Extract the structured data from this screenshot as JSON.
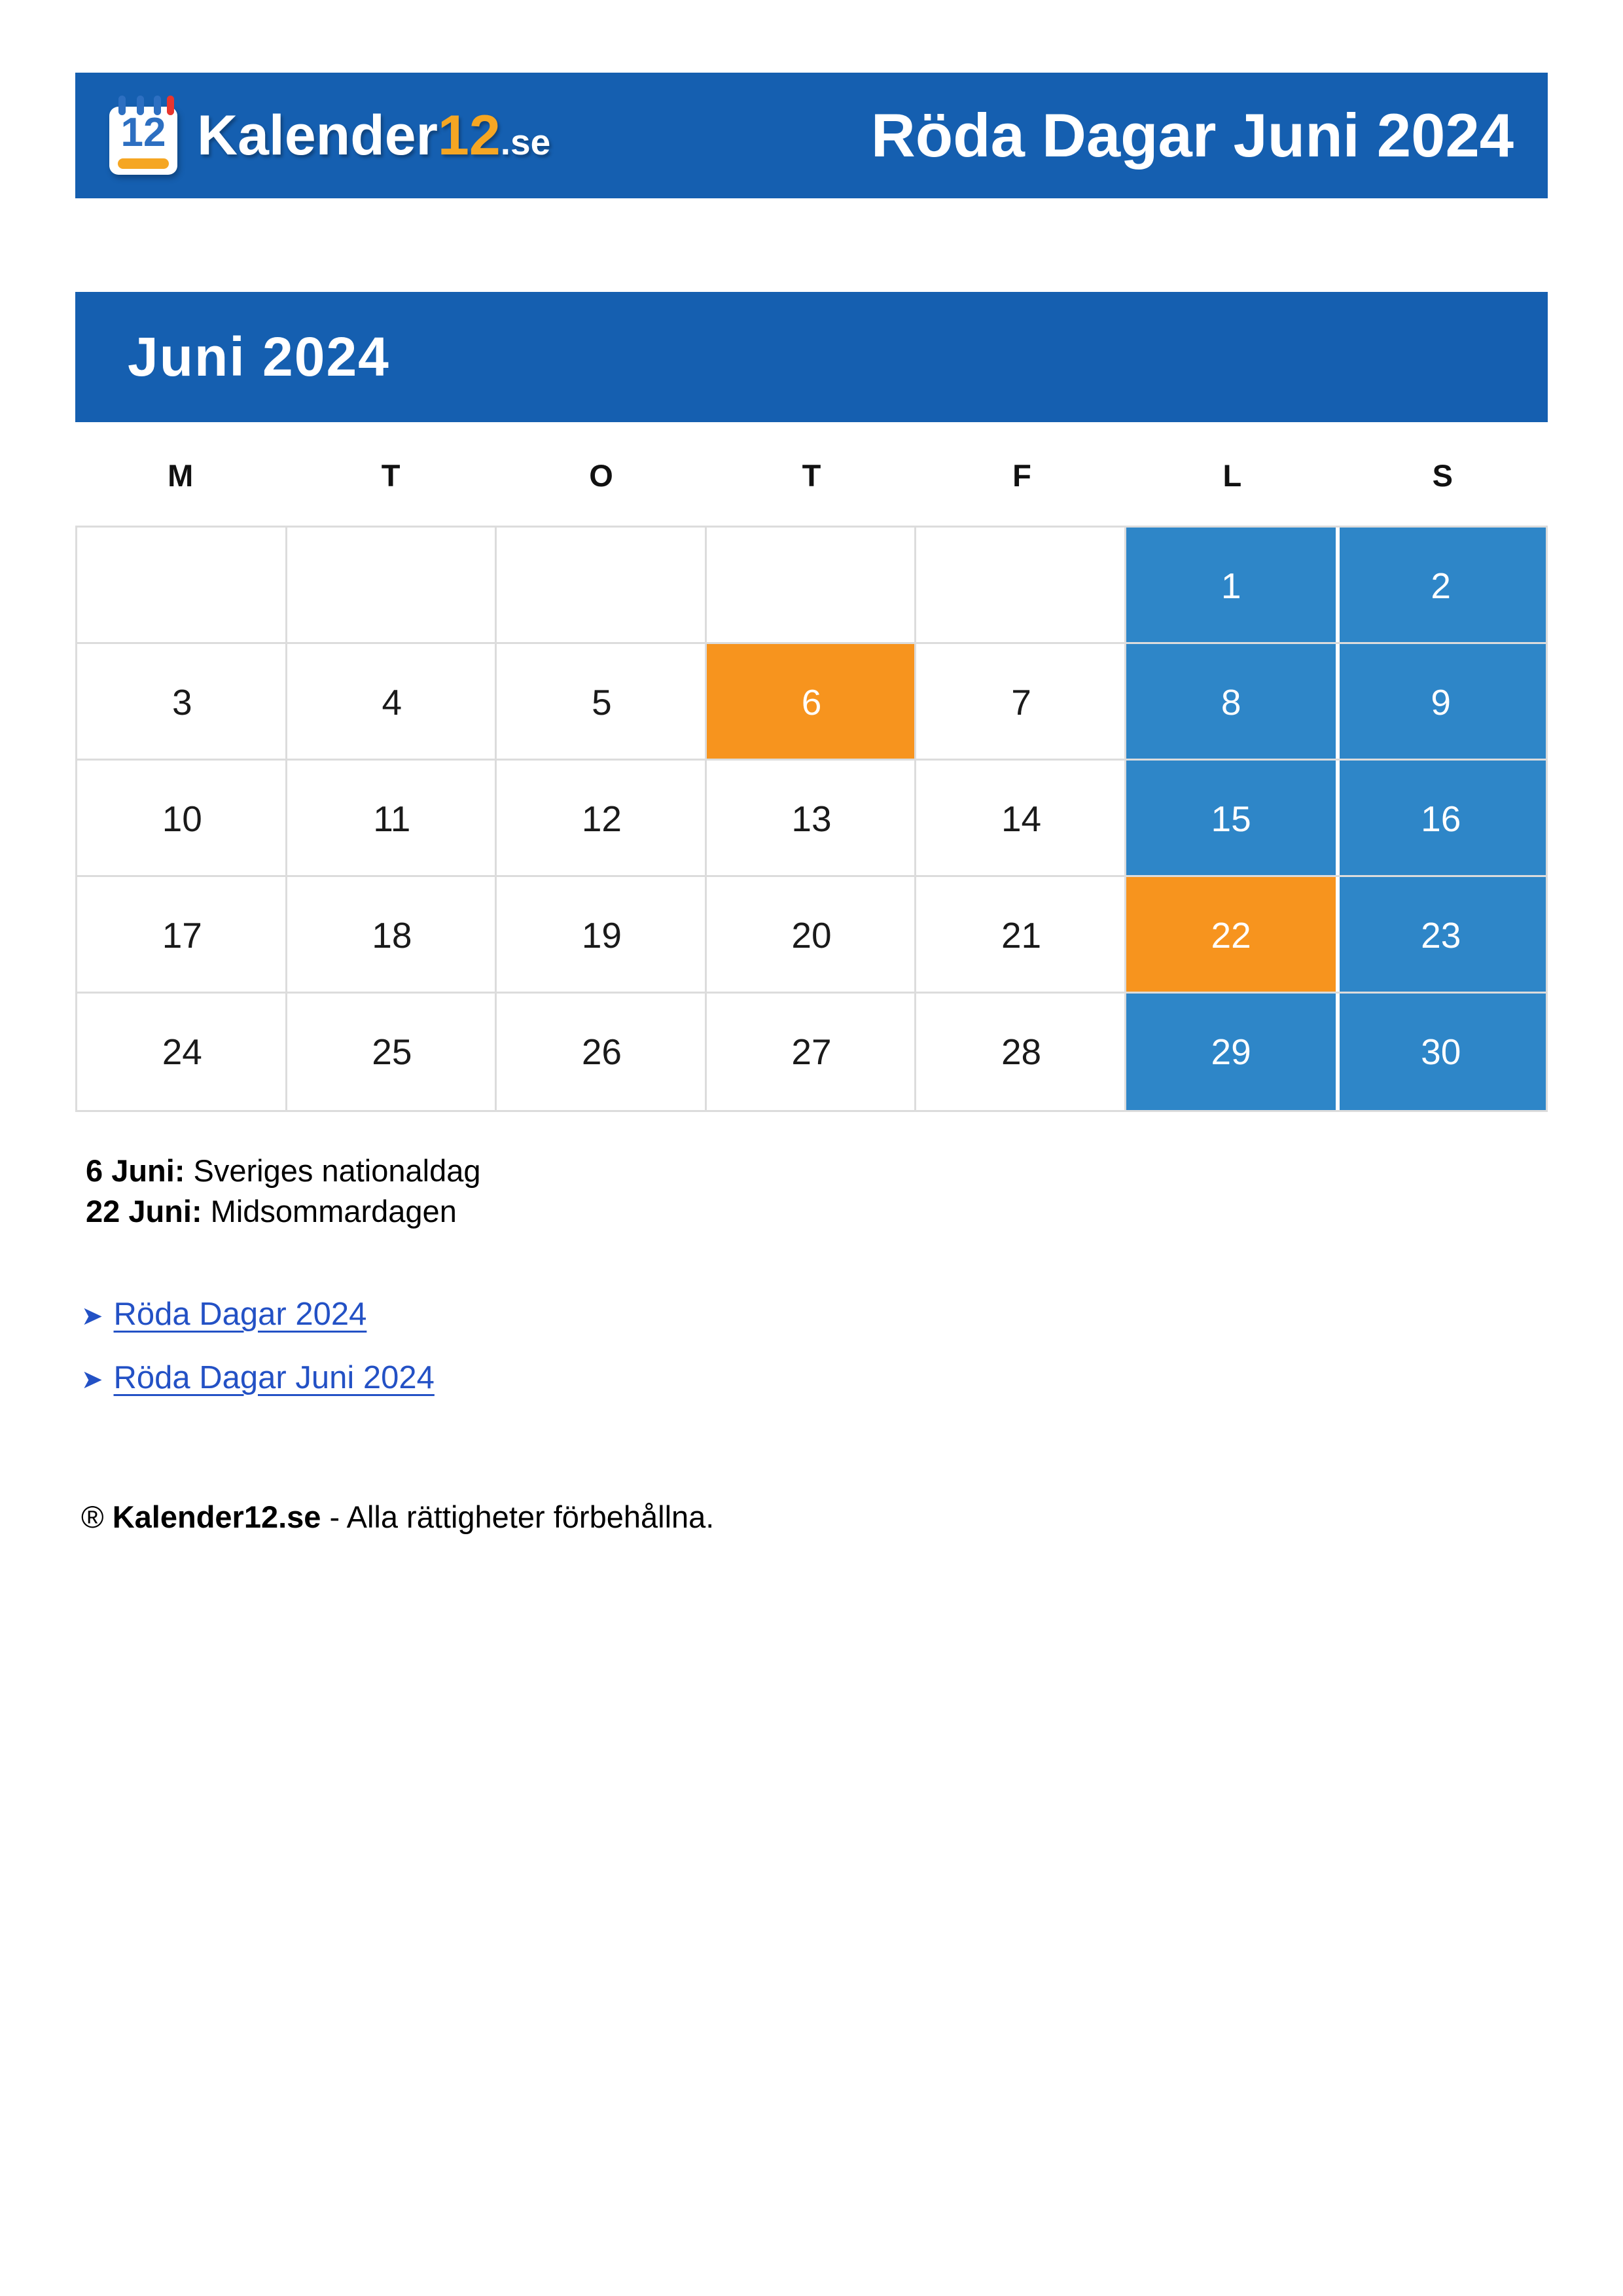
{
  "header": {
    "logo": {
      "icon_number": "12",
      "brand": "Kalender",
      "number": "12",
      "tld": ".se"
    },
    "title": "Röda Dagar Juni 2024"
  },
  "month": {
    "title": "Juni 2024"
  },
  "weekdays": [
    "M",
    "T",
    "O",
    "T",
    "F",
    "L",
    "S"
  ],
  "calendar": {
    "rows": [
      [
        {
          "day": "",
          "type": "empty"
        },
        {
          "day": "",
          "type": "empty"
        },
        {
          "day": "",
          "type": "empty"
        },
        {
          "day": "",
          "type": "empty"
        },
        {
          "day": "",
          "type": "empty"
        },
        {
          "day": "1",
          "type": "weekend"
        },
        {
          "day": "2",
          "type": "weekend"
        }
      ],
      [
        {
          "day": "3",
          "type": "day"
        },
        {
          "day": "4",
          "type": "day"
        },
        {
          "day": "5",
          "type": "day"
        },
        {
          "day": "6",
          "type": "holiday"
        },
        {
          "day": "7",
          "type": "day"
        },
        {
          "day": "8",
          "type": "weekend"
        },
        {
          "day": "9",
          "type": "weekend"
        }
      ],
      [
        {
          "day": "10",
          "type": "day"
        },
        {
          "day": "11",
          "type": "day"
        },
        {
          "day": "12",
          "type": "day"
        },
        {
          "day": "13",
          "type": "day"
        },
        {
          "day": "14",
          "type": "day"
        },
        {
          "day": "15",
          "type": "weekend"
        },
        {
          "day": "16",
          "type": "weekend"
        }
      ],
      [
        {
          "day": "17",
          "type": "day"
        },
        {
          "day": "18",
          "type": "day"
        },
        {
          "day": "19",
          "type": "day"
        },
        {
          "day": "20",
          "type": "day"
        },
        {
          "day": "21",
          "type": "day"
        },
        {
          "day": "22",
          "type": "holiday"
        },
        {
          "day": "23",
          "type": "weekend"
        }
      ],
      [
        {
          "day": "24",
          "type": "day"
        },
        {
          "day": "25",
          "type": "day"
        },
        {
          "day": "26",
          "type": "day"
        },
        {
          "day": "27",
          "type": "day"
        },
        {
          "day": "28",
          "type": "day"
        },
        {
          "day": "29",
          "type": "weekend"
        },
        {
          "day": "30",
          "type": "weekend"
        }
      ]
    ]
  },
  "legend": [
    {
      "date": "6 Juni:",
      "name": "Sveriges nationaldag"
    },
    {
      "date": "22 Juni:",
      "name": "Midsommardagen"
    }
  ],
  "links": [
    {
      "arrow": "➤",
      "label": "Röda Dagar 2024"
    },
    {
      "arrow": "➤",
      "label": "Röda Dagar Juni 2024"
    }
  ],
  "footer": {
    "symbol": "®",
    "brand": "Kalender12.se",
    "rest": " - Alla rättigheter förbehållna."
  },
  "colors": {
    "header_blue": "#155FB0",
    "weekend_blue": "#2E86C8",
    "holiday_orange": "#F7941E",
    "grid_line": "#DCDCDC",
    "link_blue": "#2351C5",
    "logo_orange": "#F5A623",
    "icon_blue": "#2D6FC1",
    "icon_red": "#E8352E"
  }
}
